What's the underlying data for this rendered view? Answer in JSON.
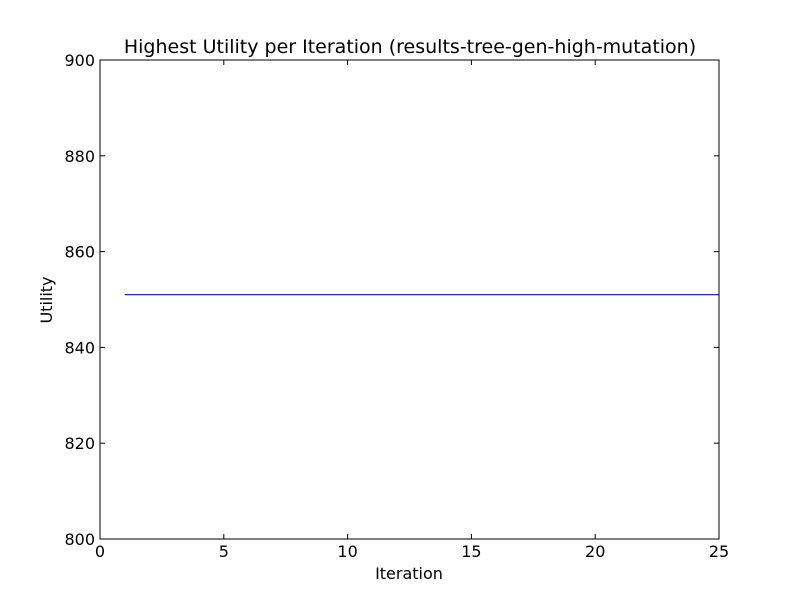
{
  "chart_data": {
    "type": "line",
    "title": "Highest Utility per Iteration (results-tree-gen-high-mutation)",
    "xlabel": "Iteration",
    "ylabel": "Utility",
    "xlim": [
      0,
      25
    ],
    "ylim": [
      800,
      900
    ],
    "xticks": [
      0,
      5,
      10,
      15,
      20,
      25
    ],
    "yticks": [
      800,
      820,
      840,
      860,
      880,
      900
    ],
    "grid": false,
    "series": [
      {
        "color": "#0000ff",
        "x": [
          1,
          2,
          3,
          4,
          5,
          6,
          7,
          8,
          9,
          10,
          11,
          12,
          13,
          14,
          15,
          16,
          17,
          18,
          19,
          20,
          21,
          22,
          23,
          24,
          25
        ],
        "y": [
          851,
          851,
          851,
          851,
          851,
          851,
          851,
          851,
          851,
          851,
          851,
          851,
          851,
          851,
          851,
          851,
          851,
          851,
          851,
          851,
          851,
          851,
          851,
          851,
          851
        ]
      }
    ]
  }
}
